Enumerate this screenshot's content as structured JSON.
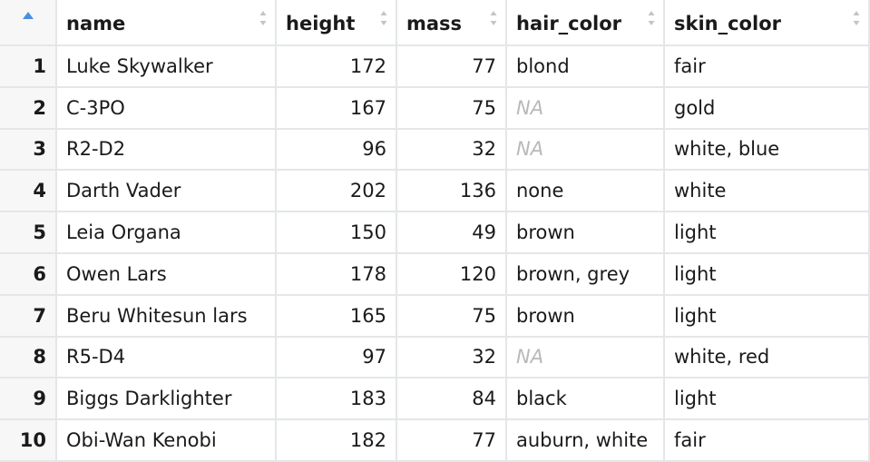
{
  "table": {
    "columns": [
      "name",
      "height",
      "mass",
      "hair_color",
      "skin_color"
    ],
    "rows": [
      {
        "index": "1",
        "name": "Luke Skywalker",
        "height": "172",
        "mass": "77",
        "hair_color": "blond",
        "skin_color": "fair"
      },
      {
        "index": "2",
        "name": "C-3PO",
        "height": "167",
        "mass": "75",
        "hair_color": "NA",
        "skin_color": "gold"
      },
      {
        "index": "3",
        "name": "R2-D2",
        "height": "96",
        "mass": "32",
        "hair_color": "NA",
        "skin_color": "white, blue"
      },
      {
        "index": "4",
        "name": "Darth Vader",
        "height": "202",
        "mass": "136",
        "hair_color": "none",
        "skin_color": "white"
      },
      {
        "index": "5",
        "name": "Leia Organa",
        "height": "150",
        "mass": "49",
        "hair_color": "brown",
        "skin_color": "light"
      },
      {
        "index": "6",
        "name": "Owen Lars",
        "height": "178",
        "mass": "120",
        "hair_color": "brown, grey",
        "skin_color": "light"
      },
      {
        "index": "7",
        "name": "Beru Whitesun lars",
        "height": "165",
        "mass": "75",
        "hair_color": "brown",
        "skin_color": "light"
      },
      {
        "index": "8",
        "name": "R5-D4",
        "height": "97",
        "mass": "32",
        "hair_color": "NA",
        "skin_color": "white, red"
      },
      {
        "index": "9",
        "name": "Biggs Darklighter",
        "height": "183",
        "mass": "84",
        "hair_color": "black",
        "skin_color": "light"
      },
      {
        "index": "10",
        "name": "Obi-Wan Kenobi",
        "height": "182",
        "mass": "77",
        "hair_color": "auburn, white",
        "skin_color": "fair"
      }
    ]
  },
  "colors": {
    "grid_line": "#e4e6e8",
    "row_header_bg": "#f7f7f7",
    "sort_active": "#4a8fe2",
    "sort_inactive": "#c4c4c4",
    "na_text": "#b9b9b9"
  },
  "icons": {
    "row_sort": "sort-ascending-icon",
    "column_sort": "sort-arrows-icon"
  }
}
